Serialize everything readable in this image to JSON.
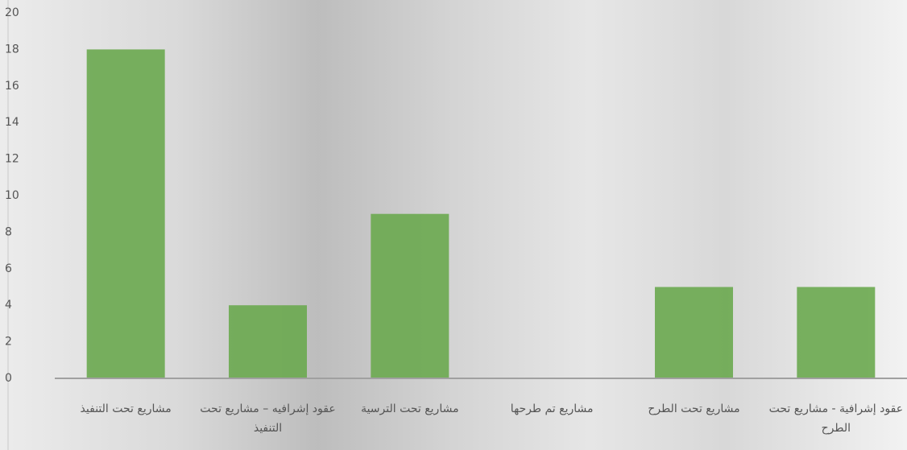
{
  "chart_data": {
    "type": "bar",
    "categories": [
      "مشاريع تحت التنفيذ",
      "عقود إشرافيه – مشاريع تحت التنفيذ",
      "مشاريع تحت الترسية",
      "مشاريع تم طرحها",
      "مشاريع تحت الطرح",
      "عقود إشرافية - مشاريع تحت الطرح"
    ],
    "values": [
      18,
      4,
      9,
      0,
      5,
      5
    ],
    "color": "#6aa84f",
    "ylim": [
      0,
      20
    ],
    "yticks": [
      0,
      2,
      4,
      6,
      8,
      10,
      12,
      14,
      16,
      18,
      20
    ],
    "grid": false
  }
}
